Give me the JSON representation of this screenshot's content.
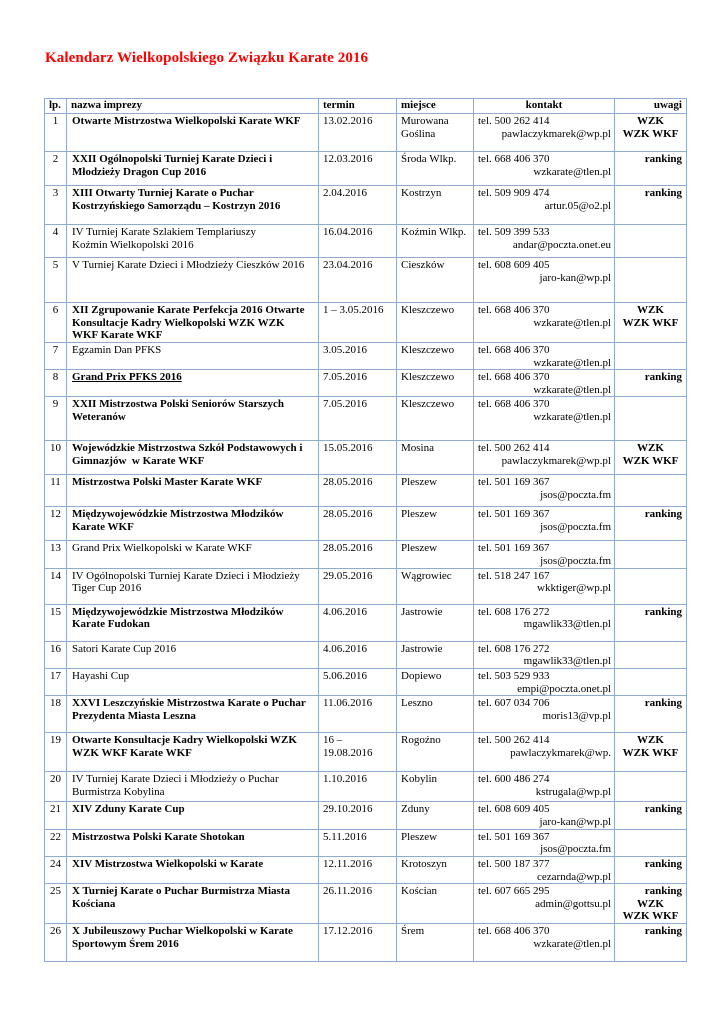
{
  "page": {
    "title": "Kalendarz Wielkopolskiego Związku Karate 2016"
  },
  "colors": {
    "title": "#ff0000",
    "table_border": "#8fabd0",
    "text": "#000000"
  },
  "table": {
    "headers": {
      "lp": "lp.",
      "nazwa": "nazwa imprezy",
      "termin": "termin",
      "miejsce": "miejsce",
      "kontakt": "kontakt",
      "uwagi": "uwagi"
    },
    "rows": [
      {
        "lp": "1",
        "nazwa": "Otwarte Mistrzostwa Wielkopolski Karate WKF",
        "bold": true,
        "underline": false,
        "termin": "13.02.2016",
        "miejsce": "Murowana\nGoślina",
        "tel": "tel. 500 262 414",
        "email": "pawlaczykmarek@wp.pl",
        "uwagi": [
          {
            "t": "WZK",
            "a": "c"
          },
          {
            "t": "WZK WKF",
            "a": "c"
          }
        ]
      },
      {
        "lp": "2",
        "nazwa": "XXII Ogólnopolski Turniej Karate Dzieci i\nMłodzieży Dragon Cup 2016",
        "bold": true,
        "underline": false,
        "termin": "12.03.2016",
        "miejsce": "Środa Wlkp.",
        "tel": "tel. 668 406 370",
        "email": "wzkarate@tlen.pl",
        "uwagi": [
          {
            "t": "ranking",
            "a": "r"
          }
        ]
      },
      {
        "lp": "3",
        "nazwa": "XIII Otwarty Turniej Karate o Puchar\nKostrzyńskiego Samorządu – Kostrzyn 2016",
        "bold": true,
        "underline": false,
        "termin": "2.04.2016",
        "miejsce": "Kostrzyn",
        "tel": "tel. 509 909 474",
        "email": "artur.05@o2.pl",
        "uwagi": [
          {
            "t": "ranking",
            "a": "r"
          }
        ]
      },
      {
        "lp": "4",
        "nazwa": "IV Turniej Karate Szlakiem Templariuszy\nKoźmin Wielkopolski 2016",
        "bold": false,
        "underline": false,
        "termin": "16.04.2016",
        "miejsce": "Koźmin Wlkp.",
        "tel": "tel. 509 399 533",
        "email": "andar@poczta.onet.eu",
        "uwagi": []
      },
      {
        "lp": "5",
        "nazwa": "V Turniej Karate Dzieci i Młodzieży Cieszków 2016",
        "bold": false,
        "underline": false,
        "termin": "23.04.2016",
        "miejsce": "Cieszków",
        "tel": "tel. 608 609 405",
        "email": "jaro-kan@wp.pl",
        "uwagi": []
      },
      {
        "lp": "6",
        "nazwa": "XII Zgrupowanie Karate Perfekcja 2016 Otwarte\nKonsultacje Kadry Wielkopolski WZK WZK\nWKF Karate WKF",
        "bold": true,
        "underline": false,
        "termin": "1 – 3.05.2016",
        "miejsce": "Kleszczewo",
        "tel": "tel. 668 406 370",
        "email": "wzkarate@tlen.pl",
        "uwagi": [
          {
            "t": "WZK",
            "a": "c"
          },
          {
            "t": "WZK WKF",
            "a": "c"
          }
        ]
      },
      {
        "lp": "7",
        "nazwa": "Egzamin Dan PFKS",
        "bold": false,
        "underline": false,
        "termin": "3.05.2016",
        "miejsce": "Kleszczewo",
        "tel": "tel. 668 406 370",
        "email": "wzkarate@tlen.pl",
        "uwagi": []
      },
      {
        "lp": "8",
        "nazwa": "Grand Prix PFKS 2016",
        "bold": true,
        "underline": true,
        "termin": "7.05.2016",
        "miejsce": "Kleszczewo",
        "tel": "tel. 668 406 370",
        "email": "wzkarate@tlen.pl",
        "uwagi": [
          {
            "t": "ranking",
            "a": "r"
          }
        ]
      },
      {
        "lp": "9",
        "nazwa": "XXII Mistrzostwa Polski Seniorów Starszych\nWeteranów",
        "bold": true,
        "underline": false,
        "termin": "7.05.2016",
        "miejsce": "Kleszczewo",
        "tel": "tel. 668 406 370",
        "email": "wzkarate@tlen.pl",
        "uwagi": []
      },
      {
        "lp": "10",
        "nazwa": "Wojewódzkie Mistrzostwa Szkół Podstawowych i\nGimnazjów  w Karate WKF",
        "bold": true,
        "underline": false,
        "termin": "15.05.2016",
        "miejsce": "Mosina",
        "tel": "tel. 500 262 414",
        "email": "pawlaczykmarek@wp.pl",
        "uwagi": [
          {
            "t": "WZK",
            "a": "c"
          },
          {
            "t": "WZK WKF",
            "a": "c"
          }
        ]
      },
      {
        "lp": "11",
        "nazwa": "Mistrzostwa Polski Master Karate WKF",
        "bold": true,
        "underline": false,
        "termin": "28.05.2016",
        "miejsce": "Pleszew",
        "tel": "tel. 501 169 367",
        "email": "jsos@poczta.fm",
        "uwagi": []
      },
      {
        "lp": "12",
        "nazwa": "Międzywojewódzkie Mistrzostwa Młodzików\nKarate WKF",
        "bold": true,
        "underline": false,
        "termin": "28.05.2016",
        "miejsce": "Pleszew",
        "tel": "tel. 501 169 367",
        "email": "jsos@poczta.fm",
        "uwagi": [
          {
            "t": "ranking",
            "a": "r"
          }
        ]
      },
      {
        "lp": "13",
        "nazwa": "Grand Prix Wielkopolski w Karate WKF",
        "bold": false,
        "underline": false,
        "termin": "28.05.2016",
        "miejsce": "Pleszew",
        "tel": "tel. 501 169 367",
        "email": "jsos@poczta.fm",
        "uwagi": []
      },
      {
        "lp": "14",
        "nazwa": "IV Ogólnopolski Turniej Karate Dzieci i Młodzieży\nTiger Cup 2016",
        "bold": false,
        "underline": false,
        "termin": "29.05.2016",
        "miejsce": "Wągrowiec",
        "tel": "tel. 518 247 167",
        "email": "wkktiger@wp.pl",
        "uwagi": []
      },
      {
        "lp": "15",
        "nazwa": "Międzywojewódzkie Mistrzostwa Młodzików\nKarate Fudokan",
        "bold": true,
        "underline": false,
        "termin": "4.06.2016",
        "miejsce": "Jastrowie",
        "tel": "tel. 608 176 272",
        "email": "mgawlik33@tlen.pl",
        "uwagi": [
          {
            "t": "ranking",
            "a": "r"
          }
        ]
      },
      {
        "lp": "16",
        "nazwa": "Satori Karate Cup 2016",
        "bold": false,
        "underline": false,
        "termin": "4.06.2016",
        "miejsce": "Jastrowie",
        "tel": "tel. 608 176 272",
        "email": "mgawlik33@tlen.pl",
        "uwagi": []
      },
      {
        "lp": "17",
        "nazwa": "Hayashi Cup",
        "bold": false,
        "underline": false,
        "termin": "5.06.2016",
        "miejsce": "Dopiewo",
        "tel": "tel. 503 529 933",
        "email": "empi@poczta.onet.pl",
        "uwagi": []
      },
      {
        "lp": "18",
        "nazwa": "XXVI Leszczyńskie Mistrzostwa Karate o Puchar\nPrezydenta Miasta Leszna",
        "bold": true,
        "underline": false,
        "termin": "11.06.2016",
        "miejsce": "Leszno",
        "tel": "tel. 607 034 706",
        "email": "moris13@vp.pl",
        "uwagi": [
          {
            "t": "ranking",
            "a": "r"
          }
        ]
      },
      {
        "lp": "19",
        "nazwa": "Otwarte Konsultacje Kadry Wielkopolski WZK\nWZK WKF Karate WKF",
        "bold": true,
        "underline": false,
        "termin": "16 –\n19.08.2016",
        "miejsce": "Rogoźno",
        "tel": "tel. 500 262 414",
        "email": "pawlaczykmarek@wp.",
        "uwagi": [
          {
            "t": "WZK",
            "a": "c"
          },
          {
            "t": "WZK WKF",
            "a": "c"
          }
        ]
      },
      {
        "lp": "20",
        "nazwa": "IV Turniej Karate Dzieci i Młodzieży o Puchar\nBurmistrza Kobylina",
        "bold": false,
        "underline": false,
        "termin": "1.10.2016",
        "miejsce": "Kobylin",
        "tel": "tel. 600 486 274",
        "email": "kstrugala@wp.pl",
        "uwagi": []
      },
      {
        "lp": "21",
        "nazwa": "XIV Zduny Karate Cup",
        "bold": true,
        "underline": false,
        "termin": "29.10.2016",
        "miejsce": "Zduny",
        "tel": "tel. 608 609 405",
        "email": "jaro-kan@wp.pl",
        "uwagi": [
          {
            "t": "ranking",
            "a": "r"
          }
        ]
      },
      {
        "lp": "22",
        "nazwa": "Mistrzostwa Polski Karate Shotokan",
        "bold": true,
        "underline": false,
        "termin": "5.11.2016",
        "miejsce": "Pleszew",
        "tel": "tel. 501 169 367",
        "email": "jsos@poczta.fm",
        "uwagi": []
      },
      {
        "lp": "24",
        "nazwa": "XIV Mistrzostwa Wielkopolski w Karate",
        "bold": true,
        "underline": false,
        "termin": "12.11.2016",
        "miejsce": "Krotoszyn",
        "tel": "tel. 500 187 377",
        "email": "cezarnda@wp.pl",
        "uwagi": [
          {
            "t": "ranking",
            "a": "r"
          }
        ]
      },
      {
        "lp": "25",
        "nazwa": "X Turniej Karate o Puchar Burmistrza Miasta\nKościana",
        "bold": true,
        "underline": false,
        "termin": "26.11.2016",
        "miejsce": "Kościan",
        "tel": "tel. 607 665 295",
        "email": "admin@gottsu.pl",
        "uwagi": [
          {
            "t": "ranking",
            "a": "r"
          },
          {
            "t": "WZK",
            "a": "c"
          },
          {
            "t": "WZK WKF",
            "a": "c"
          }
        ]
      },
      {
        "lp": "26",
        "nazwa": "X Jubileuszowy Puchar Wielkopolski w Karate\nSportowym Śrem 2016",
        "bold": true,
        "underline": false,
        "termin": "17.12.2016",
        "miejsce": "Śrem",
        "tel": "tel. 668 406 370",
        "email": "wzkarate@tlen.pl",
        "uwagi": [
          {
            "t": "ranking",
            "a": "r"
          }
        ]
      }
    ]
  }
}
